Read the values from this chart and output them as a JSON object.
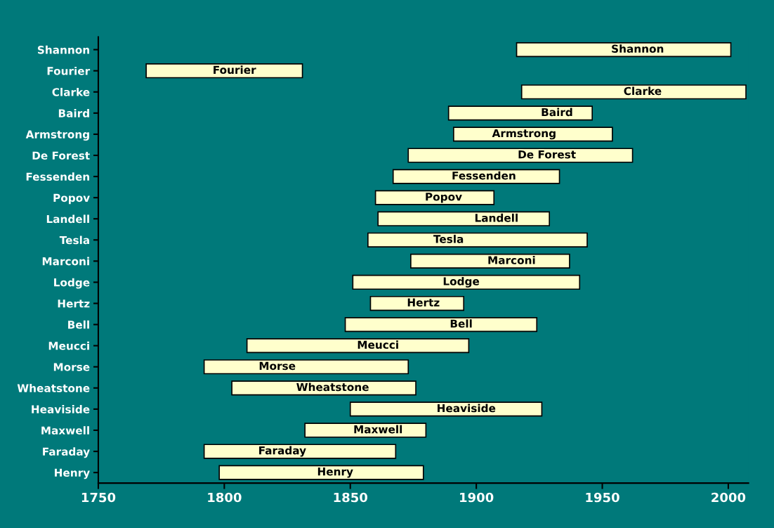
{
  "chart_data": {
    "type": "bar",
    "orientation": "horizontal",
    "categories": [
      "Shannon",
      "Fourier",
      "Clarke",
      "Baird",
      "Armstrong",
      "De Forest",
      "Fessenden",
      "Popov",
      "Landell",
      "Tesla",
      "Marconi",
      "Lodge",
      "Hertz",
      "Bell",
      "Meucci",
      "Morse",
      "Wheatstone",
      "Heaviside",
      "Maxwell",
      "Faraday",
      "Henry"
    ],
    "base": [
      1916,
      1769,
      1918,
      1889,
      1891,
      1873,
      1867,
      1860,
      1861,
      1857,
      1874,
      1851,
      1858,
      1848,
      1809,
      1792,
      1803,
      1850,
      1832,
      1792,
      1798
    ],
    "values": [
      85,
      62,
      89,
      57,
      63,
      89,
      66,
      47,
      68,
      87,
      63,
      90,
      37,
      76,
      88,
      81,
      73,
      76,
      48,
      76,
      81
    ],
    "color": "#ffffcc",
    "xlim": [
      1750,
      2008
    ],
    "xticks": [
      1750,
      1800,
      1850,
      1900,
      1950,
      2000
    ],
    "grid": false,
    "legend": false,
    "annotations": [
      {
        "text": "Shannon",
        "x": 1964,
        "y": "Shannon"
      },
      {
        "text": "Fourier",
        "x": 1804,
        "y": "Fourier"
      },
      {
        "text": "Clarke",
        "x": 1966,
        "y": "Clarke"
      },
      {
        "text": "Baird",
        "x": 1932,
        "y": "Baird"
      },
      {
        "text": "Armstrong",
        "x": 1919,
        "y": "Armstrong"
      },
      {
        "text": "De Forest",
        "x": 1928,
        "y": "De Forest"
      },
      {
        "text": "Fessenden",
        "x": 1903,
        "y": "Fessenden"
      },
      {
        "text": "Popov",
        "x": 1887,
        "y": "Popov"
      },
      {
        "text": "Landell",
        "x": 1908,
        "y": "Landell"
      },
      {
        "text": "Tesla",
        "x": 1889,
        "y": "Tesla"
      },
      {
        "text": "Marconi",
        "x": 1914,
        "y": "Marconi"
      },
      {
        "text": "Lodge",
        "x": 1894,
        "y": "Lodge"
      },
      {
        "text": "Hertz",
        "x": 1879,
        "y": "Hertz"
      },
      {
        "text": "Bell",
        "x": 1894,
        "y": "Bell"
      },
      {
        "text": "Meucci",
        "x": 1861,
        "y": "Meucci"
      },
      {
        "text": "Morse",
        "x": 1821,
        "y": "Morse"
      },
      {
        "text": "Wheatstone",
        "x": 1843,
        "y": "Wheatstone"
      },
      {
        "text": "Heaviside",
        "x": 1896,
        "y": "Heaviside"
      },
      {
        "text": "Maxwell",
        "x": 1861,
        "y": "Maxwell"
      },
      {
        "text": "Faraday",
        "x": 1823,
        "y": "Faraday"
      },
      {
        "text": "Henry",
        "x": 1844,
        "y": "Henry"
      }
    ]
  }
}
